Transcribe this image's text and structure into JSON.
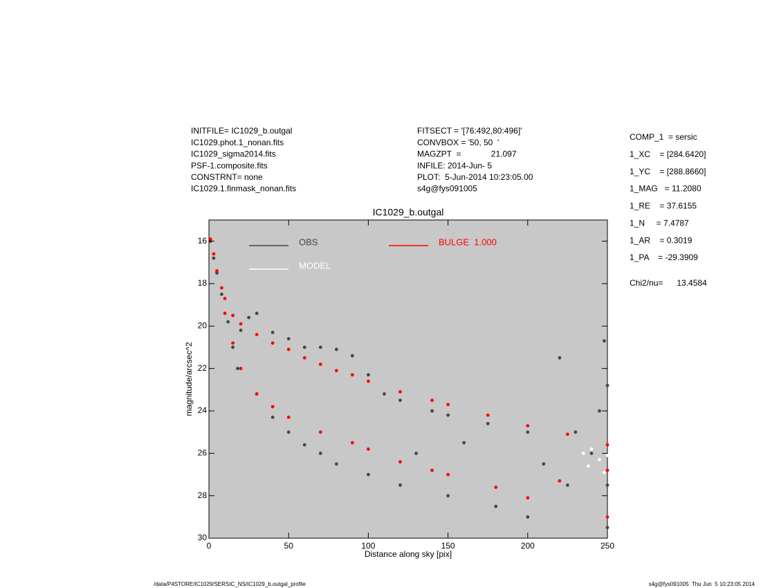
{
  "chart_data": {
    "type": "scatter",
    "title": "IC1029_b.outgal",
    "xlabel": "Distance along sky [pix]",
    "ylabel": "magnitude/arcsec^2",
    "xlim": [
      0,
      250
    ],
    "xticks": [
      0,
      50,
      100,
      150,
      200,
      250
    ],
    "ylim": [
      30,
      15
    ],
    "yticks": [
      16,
      18,
      20,
      22,
      24,
      26,
      28,
      30
    ],
    "background": "#c8c8c8",
    "series": [
      {
        "name": "OBS",
        "color": "#454545",
        "x": [
          1,
          3,
          5,
          8,
          12,
          15,
          18,
          20,
          25,
          30,
          30,
          40,
          40,
          50,
          50,
          60,
          60,
          70,
          70,
          80,
          80,
          90,
          100,
          100,
          110,
          120,
          120,
          130,
          140,
          150,
          150,
          160,
          175,
          180,
          200,
          200,
          210,
          220,
          225,
          230,
          240,
          245,
          248,
          250,
          250,
          250
        ],
        "values": [
          16,
          16.8,
          17.5,
          18.5,
          19.8,
          21,
          22,
          20.2,
          19.6,
          19.4,
          23.2,
          20.3,
          24.3,
          20.6,
          25,
          21,
          25.6,
          21,
          26,
          21.1,
          26.5,
          21.4,
          22.3,
          27,
          23.2,
          23.5,
          27.5,
          26,
          24,
          24.2,
          28,
          25.5,
          24.6,
          28.5,
          25,
          29,
          26.5,
          21.5,
          27.5,
          25,
          26,
          24,
          20.7,
          22.8,
          29.5,
          27.5
        ]
      },
      {
        "name": "MODEL",
        "color": "#ffffff",
        "x": [
          235,
          240,
          245,
          250,
          238,
          248
        ],
        "values": [
          26,
          25.8,
          26.3,
          26.1,
          26.6,
          26.9
        ]
      },
      {
        "name": "BULGE  1.000",
        "color": "#ff0000",
        "x": [
          1,
          3,
          5,
          8,
          10,
          10,
          15,
          15,
          20,
          20,
          30,
          30,
          40,
          40,
          50,
          50,
          60,
          70,
          70,
          80,
          90,
          90,
          100,
          100,
          120,
          120,
          140,
          140,
          150,
          150,
          175,
          180,
          200,
          200,
          225,
          220,
          250,
          250,
          250
        ],
        "values": [
          15.9,
          16.6,
          17.4,
          18.2,
          18.7,
          19.4,
          19.5,
          20.8,
          19.9,
          22,
          20.4,
          23.2,
          20.8,
          23.8,
          21.1,
          24.3,
          21.5,
          21.8,
          25,
          22.1,
          22.3,
          25.5,
          22.6,
          25.8,
          23.1,
          26.4,
          23.5,
          26.8,
          23.7,
          27,
          24.2,
          27.6,
          24.7,
          28.1,
          25.1,
          27.3,
          25.6,
          29,
          26.8
        ]
      }
    ]
  },
  "info": {
    "left": [
      "INITFILE= IC1029_b.outgal",
      "IC1029.phot.1_nonan.fits",
      "IC1029_sigma2014.fits",
      "PSF-1.composite.fits",
      "CONSTRNT= none",
      "IC1029.1.finmask_nonan.fits"
    ],
    "middle": [
      "FITSECT = '[76:492,80:496]'",
      "CONVBOX = '50, 50  '",
      "MAGZPT  =             21.097",
      "INFILE: 2014-Jun- 5",
      "PLOT:  5-Jun-2014 10:23:05.00",
      "s4g@fys091005"
    ],
    "right": [
      "COMP_1  = sersic",
      "1_XC    = [284.6420]",
      "1_YC    = [288.8660]",
      "1_MAG   = 11.2080",
      "1_RE    = 37.6155",
      "1_N     = 7.4787",
      "1_AR    = 0.3019",
      "1_PA    = -29.3909"
    ],
    "chi2": "Chi2/nu=      13.4584",
    "footer_left": "/data/P4STORE/IC1029/SERSIC_NS/IC1029_b.outgal_profile",
    "footer_right": "s4g@fys091005  Thu Jun  5 10:23:05 2014"
  }
}
